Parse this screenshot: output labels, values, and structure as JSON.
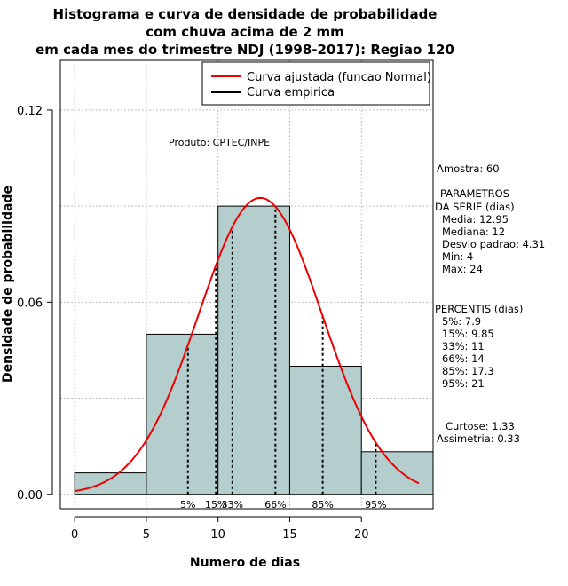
{
  "chart_data": {
    "type": "histogram",
    "title": [
      "Histograma e curva de densidade de probabilidade",
      "com chuva acima de 2 mm",
      "em cada mes do trimestre NDJ (1998-2017): Regiao 120"
    ],
    "xlabel": "Numero de dias",
    "ylabel": "Densidade de probabilidade",
    "xlim": [
      -1,
      25
    ],
    "ylim": [
      -0.0045,
      0.1355
    ],
    "xticks": [
      "0",
      "5",
      "10",
      "15",
      "20"
    ],
    "xtick_values": [
      0,
      5,
      10,
      15,
      20
    ],
    "yticks": [
      "0.00",
      "0.06",
      "0.12"
    ],
    "ytick_values": [
      0.0,
      0.06,
      0.12
    ],
    "bins": [
      {
        "from": 0,
        "to": 5,
        "density": 0.0067
      },
      {
        "from": 5,
        "to": 10,
        "density": 0.05
      },
      {
        "from": 10,
        "to": 15,
        "density": 0.09
      },
      {
        "from": 15,
        "to": 20,
        "density": 0.04
      },
      {
        "from": 20,
        "to": 25,
        "density": 0.0133
      }
    ],
    "bar_color": "#b4cece",
    "curve_color": "#ee0000",
    "normal_fit": {
      "mean": 12.95,
      "sd": 4.31,
      "from": 0,
      "to": 24
    },
    "legend": [
      "Curva ajustada (funcao Normal)",
      "Curva empirica"
    ],
    "annotation": "Produto: CPTEC/INPE",
    "percentiles": [
      {
        "label": "5%",
        "value": 7.9
      },
      {
        "label": "15%",
        "value": 9.85
      },
      {
        "label": "33%",
        "value": 11
      },
      {
        "label": "66%",
        "value": 14
      },
      {
        "label": "85%",
        "value": 17.3
      },
      {
        "label": "95%",
        "value": 21
      }
    ]
  },
  "stats": {
    "amostra": "Amostra: 60",
    "param_header1": "PARAMETROS",
    "param_header2": "DA SERIE (dias)",
    "media": "Media: 12.95",
    "mediana": "Mediana: 12",
    "desvio": "Desvio padrao: 4.31",
    "min": "Min: 4",
    "max": "Max: 24",
    "perc_header": "PERCENTIS (dias)",
    "p5": "5%: 7.9",
    "p15": "15%: 9.85",
    "p33": "33%: 11",
    "p66": "66%: 14",
    "p85": "85%: 17.3",
    "p95": "95%: 21",
    "curtose": "Curtose: 1.33",
    "assimetria": "Assimetria: 0.33"
  }
}
